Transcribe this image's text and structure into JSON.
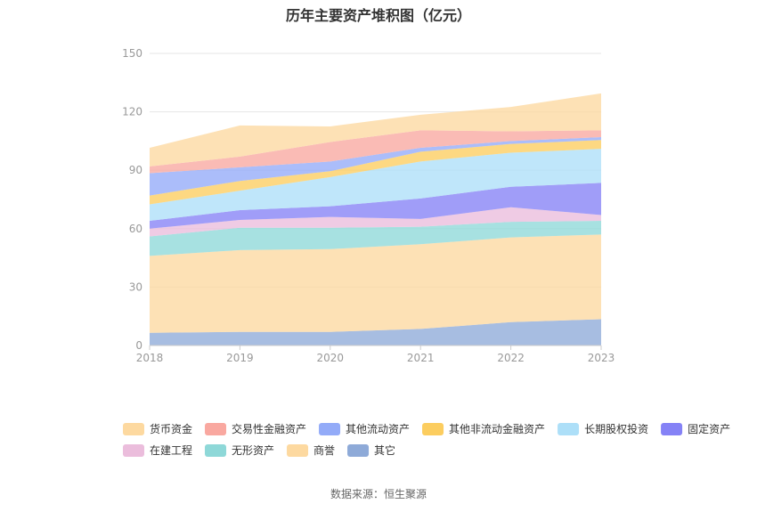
{
  "chart_data": {
    "type": "area",
    "stacked": true,
    "title": "历年主要资产堆积图（亿元）",
    "xlabel": "",
    "ylabel": "",
    "categories": [
      "2018",
      "2019",
      "2020",
      "2021",
      "2022",
      "2023"
    ],
    "ylim": [
      0,
      150
    ],
    "yticks": [
      0,
      30,
      60,
      90,
      120,
      150
    ],
    "grid": true,
    "legend_position": "bottom",
    "series": [
      {
        "name": "其它",
        "color": "#8eaad8",
        "values": [
          6.5,
          7,
          7,
          8.5,
          12,
          13.5
        ]
      },
      {
        "name": "商誉",
        "color": "#fdd9a0",
        "values": [
          39.5,
          42,
          42.5,
          43.5,
          43.5,
          43.5
        ]
      },
      {
        "name": "无形资产",
        "color": "#8ed8d8",
        "values": [
          10,
          11.5,
          11,
          9,
          8,
          7
        ]
      },
      {
        "name": "在建工程",
        "color": "#ebbddc",
        "values": [
          4,
          4,
          5.5,
          4,
          7.5,
          3
        ]
      },
      {
        "name": "固定资产",
        "color": "#8582f6",
        "values": [
          4,
          5,
          5.5,
          10.5,
          10.5,
          16.5
        ]
      },
      {
        "name": "长期股权投资",
        "color": "#addff8",
        "values": [
          8.5,
          10,
          15,
          19,
          17.5,
          17.5
        ]
      },
      {
        "name": "其他非流动金融资产",
        "color": "#fccd5f",
        "values": [
          4.5,
          5,
          3,
          5,
          4.5,
          4.5
        ]
      },
      {
        "name": "其他流动资产",
        "color": "#93abf8",
        "values": [
          11.5,
          7,
          5,
          2,
          1.5,
          1.5
        ]
      },
      {
        "name": "交易性金融资产",
        "color": "#f9a8a0",
        "values": [
          3.5,
          5.5,
          10,
          9,
          5,
          3.5
        ]
      },
      {
        "name": "货币资金",
        "color": "#fdd9a0",
        "values": [
          9.5,
          16,
          8,
          8,
          12.5,
          19
        ]
      }
    ],
    "legend_order": [
      "货币资金",
      "交易性金融资产",
      "其他流动资产",
      "其他非流动金融资产",
      "长期股权投资",
      "固定资产",
      "在建工程",
      "无形资产",
      "商誉",
      "其它"
    ]
  },
  "source_note": "数据来源：恒生聚源"
}
